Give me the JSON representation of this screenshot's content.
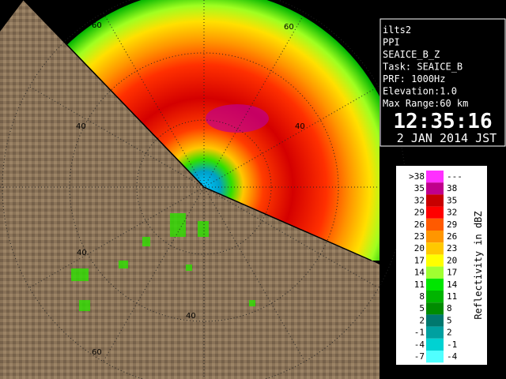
{
  "info": {
    "lines": [
      "ilts2",
      "PPI",
      "SEAICE_B_Z",
      "Task: SEAICE_B",
      "PRF: 1000Hz",
      "Elevation:1.0",
      "Max Range:60 km"
    ],
    "time": "12:35:16",
    "date": "2 JAN 2014 JST"
  },
  "legend": {
    "title": "Reflectivity in dBZ",
    "rows": [
      {
        "low": ">38",
        "high": "---",
        "color": "#ff30ff"
      },
      {
        "low": "35",
        "high": "38",
        "color": "#c0008c"
      },
      {
        "low": "32",
        "high": "35",
        "color": "#c80000"
      },
      {
        "low": "29",
        "high": "32",
        "color": "#ff0000"
      },
      {
        "low": "26",
        "high": "29",
        "color": "#ff5a00"
      },
      {
        "low": "23",
        "high": "26",
        "color": "#ff9600"
      },
      {
        "low": "20",
        "high": "23",
        "color": "#ffc800"
      },
      {
        "low": "17",
        "high": "20",
        "color": "#ffff00"
      },
      {
        "low": "14",
        "high": "17",
        "color": "#a0ff30"
      },
      {
        "low": "11",
        "high": "14",
        "color": "#00e600"
      },
      {
        "low": "8",
        "high": "11",
        "color": "#00b400"
      },
      {
        "low": "5",
        "high": "8",
        "color": "#008c00"
      },
      {
        "low": "2",
        "high": "5",
        "color": "#00786e"
      },
      {
        "low": "-1",
        "high": "2",
        "color": "#00a0a0"
      },
      {
        "low": "-4",
        "high": "-1",
        "color": "#00d2d2"
      },
      {
        "low": "-7",
        "high": "-4",
        "color": "#50ffff"
      }
    ]
  },
  "rings": {
    "labels": [
      "60",
      "60",
      "40",
      "40",
      "40",
      "40",
      "60"
    ]
  }
}
